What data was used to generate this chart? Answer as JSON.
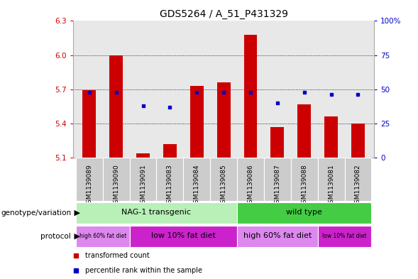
{
  "title": "GDS5264 / A_51_P431329",
  "samples": [
    "GSM1139089",
    "GSM1139090",
    "GSM1139091",
    "GSM1139083",
    "GSM1139084",
    "GSM1139085",
    "GSM1139086",
    "GSM1139087",
    "GSM1139088",
    "GSM1139081",
    "GSM1139082"
  ],
  "red_values": [
    5.69,
    6.0,
    5.14,
    5.22,
    5.73,
    5.76,
    6.18,
    5.37,
    5.57,
    5.46,
    5.4
  ],
  "blue_values": [
    48,
    48,
    38,
    37,
    48,
    48,
    48,
    40,
    48,
    46,
    46
  ],
  "ymin": 5.1,
  "ymax": 6.3,
  "yticks": [
    5.1,
    5.4,
    5.7,
    6.0,
    6.3
  ],
  "y2min": 0,
  "y2max": 100,
  "y2ticks": [
    0,
    25,
    50,
    75,
    100
  ],
  "y2ticklabels": [
    "0",
    "25",
    "50",
    "75",
    "100%"
  ],
  "bar_color": "#cc0000",
  "dot_color": "#0000cc",
  "bg_color": "#e8e8e8",
  "geno_colors": [
    "#b8f0b8",
    "#44cc44"
  ],
  "geno_texts": [
    "NAG-1 transgenic",
    "wild type"
  ],
  "proto_colors_light": "#dd88ee",
  "proto_colors_dark": "#cc22cc",
  "proto_groups": [
    {
      "text": "high 60% fat diet",
      "start": 0,
      "end": 1,
      "light": true
    },
    {
      "text": "low 10% fat diet",
      "start": 2,
      "end": 5,
      "light": false
    },
    {
      "text": "high 60% fat diet",
      "start": 6,
      "end": 8,
      "light": true
    },
    {
      "text": "low 10% fat diet",
      "start": 9,
      "end": 10,
      "light": false
    }
  ],
  "legend_items": [
    {
      "color": "#cc0000",
      "label": "transformed count"
    },
    {
      "color": "#0000cc",
      "label": "percentile rank within the sample"
    }
  ],
  "title_fontsize": 10,
  "tick_fontsize": 7.5,
  "sample_fontsize": 6.5,
  "label_fontsize": 7.5,
  "annot_fontsize": 8
}
